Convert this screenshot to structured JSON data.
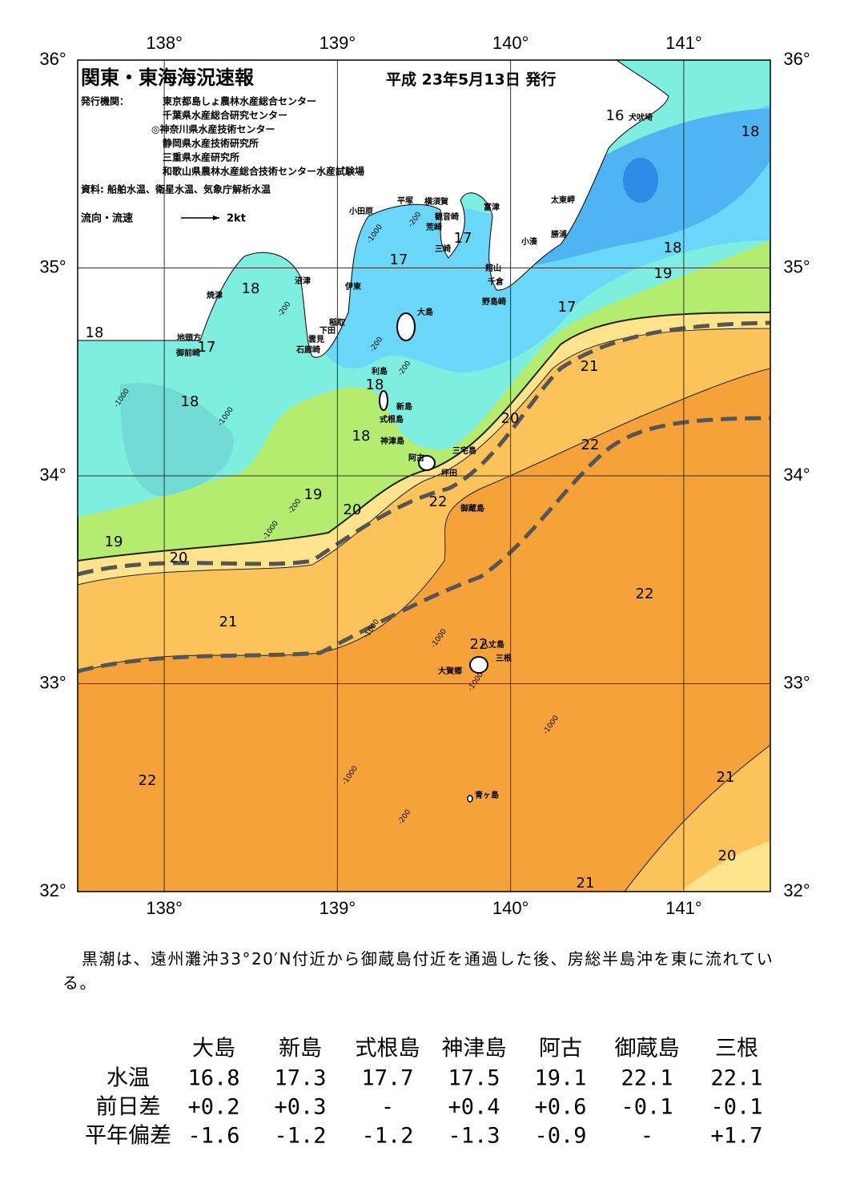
{
  "header": {
    "title": "関東・東海海況速報",
    "date": "平成 23年5月13日 発行"
  },
  "issuers": {
    "label": "発行機関：",
    "names": [
      "東京都島しょ農林水産総合センター",
      "千葉県水産総合研究センター",
      "◎神奈川県水産技術センター",
      "静岡県水産技術研究所",
      "三重県水産研究所",
      "和歌山県農林水産総合技術センター水産試験場"
    ]
  },
  "source": "資料: 船舶水温、衛星水温、気象庁解析水温",
  "legend": {
    "label": "流向・流速",
    "scale": "2kt"
  },
  "map": {
    "lon_range": [
      137.5,
      141.5
    ],
    "lat_range": [
      32,
      36
    ],
    "lon_ticks": [
      {
        "value": 138,
        "label": "138°"
      },
      {
        "value": 139,
        "label": "139°"
      },
      {
        "value": 140,
        "label": "140°"
      },
      {
        "value": 141,
        "label": "141°"
      }
    ],
    "lat_ticks": [
      {
        "value": 36,
        "label": "36°"
      },
      {
        "value": 35,
        "label": "35°"
      },
      {
        "value": 34,
        "label": "34°"
      },
      {
        "value": 33,
        "label": "33°"
      },
      {
        "value": 32,
        "label": "32°"
      }
    ]
  },
  "place_names": [
    "犬吠埼",
    "太東岬",
    "勝浦",
    "小湊",
    "富津",
    "横須賀",
    "観音崎",
    "荒崎",
    "平塚",
    "小田原",
    "三崎",
    "館山",
    "千倉",
    "野島崎",
    "沼津",
    "伊東",
    "大島",
    "稲取",
    "下田",
    "雲見",
    "石廊崎",
    "焼津",
    "地頭方",
    "御前崎",
    "利島",
    "新島",
    "式根島",
    "神津島",
    "三宅島",
    "阿古",
    "坪田",
    "御蔵島",
    "八丈島",
    "三根",
    "大賀郷",
    "青ヶ島"
  ],
  "temperature_labels": [
    16,
    18,
    17,
    17,
    18,
    19,
    18,
    17,
    18,
    17,
    18,
    21,
    18,
    20,
    18,
    22,
    19,
    22,
    20,
    19,
    20,
    22,
    21,
    22,
    22,
    21,
    20,
    21
  ],
  "depth_labels": [
    -200,
    -1000,
    -200,
    -200,
    -200,
    -1000,
    -1000,
    -200,
    -1000,
    -1000,
    -1000,
    -1000,
    -1000,
    -200,
    -1000
  ],
  "summary": "黒潮は、遠州灘沖33°20′N付近から御蔵島付近を通過した後、房総半島沖を東に流れている。",
  "table": {
    "columns": [
      "大島",
      "新島",
      "式根島",
      "神津島",
      "阿古",
      "御蔵島",
      "三根"
    ],
    "rows": [
      {
        "label": "水温",
        "values": [
          "16.8",
          "17.3",
          "17.7",
          "17.5",
          "19.1",
          "22.1",
          "22.1"
        ]
      },
      {
        "label": "前日差",
        "values": [
          "+0.2",
          "+0.3",
          "-",
          "+0.4",
          "+0.6",
          "-0.1",
          "-0.1"
        ]
      },
      {
        "label": "平年偏差",
        "values": [
          "-1.6",
          "-1.2",
          "-1.2",
          "-1.3",
          "-0.9",
          "-",
          "+1.7"
        ]
      }
    ]
  }
}
